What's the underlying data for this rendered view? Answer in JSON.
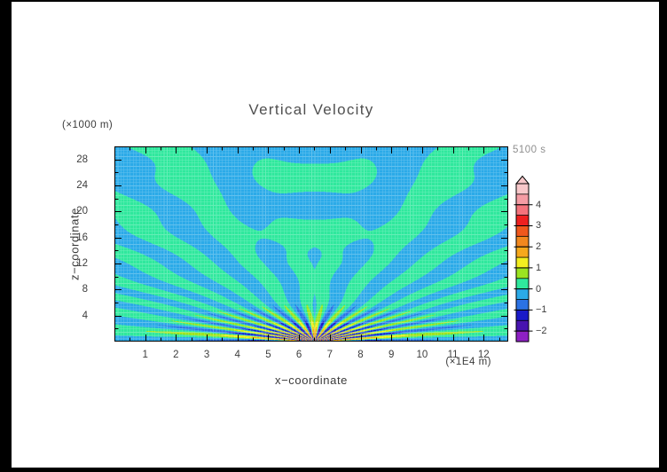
{
  "window": {
    "border_color": "#000000",
    "page_color": "#ffffff"
  },
  "header": {
    "title": "Vertical Velocity",
    "time_label": "5100 s"
  },
  "axes": {
    "x": {
      "label": "x−coordinate",
      "unit": "(×1E4 m)",
      "min": 0,
      "max": 12.8,
      "major_ticks": [
        1,
        2,
        3,
        4,
        5,
        6,
        7,
        8,
        9,
        10,
        11,
        12
      ],
      "minor_step": 0.5
    },
    "z": {
      "label": "z−coordinate",
      "unit": "(×1000 m)",
      "min": 0,
      "max": 30,
      "major_ticks": [
        4,
        8,
        12,
        16,
        20,
        24,
        28
      ],
      "minor_step": 2
    }
  },
  "colorbar": {
    "min": -2.5,
    "max": 5.0,
    "step": 0.5,
    "arrow_cap": "top",
    "tick_values": [
      4,
      3,
      2,
      1,
      0,
      -1,
      -2
    ],
    "tick_labels": [
      "4",
      "3",
      "2",
      "1",
      "0",
      "−1",
      "−2"
    ],
    "colors_low_to_high": [
      "#8E20C4",
      "#4814B0",
      "#1A1AC8",
      "#2B72E4",
      "#2BAAE8",
      "#2FE89D",
      "#9BE421",
      "#F2EE20",
      "#F6A81C",
      "#F2881E",
      "#F0581C",
      "#EE2020",
      "#F4737C",
      "#F59CA4",
      "#F8C8CA"
    ]
  },
  "chart_data": {
    "type": "heatmap",
    "title": "Vertical Velocity",
    "xlabel": "x−coordinate (×1E4 m)",
    "ylabel": "z−coordinate (×1000 m)",
    "x_range": [
      0,
      12.8
    ],
    "z_range": [
      0,
      30
    ],
    "time_s": 5100,
    "value_levels": {
      "min": -2.5,
      "max": 5.0,
      "step": 0.5
    },
    "description": "Internal-gravity-wave fan of alternating w-bands (mostly -0.5..0.5) radiating from a surface source at x=6.5e4 m; stronger amplitudes near the source, horizontal banding in the upper central column, fine mesh texture over the fill.",
    "model": {
      "source_x": 6.5,
      "phase_coeff": 48,
      "phase_offset": 0,
      "wobble_amp": 0.5,
      "wobble_kz": 0.85,
      "wobble_kx": 0.55,
      "base_amp": 0.47,
      "bump_amp": 2.0,
      "bump_sigma": 2.8,
      "column_sigma": 2.1,
      "column_zstart": 12,
      "column_zfade": 4,
      "column_period": 8.6,
      "column_phase": 2.8,
      "column_amp": 0.45,
      "mesh_nx": 128,
      "mesh_nz": 60,
      "mesh_lighten": 0.26
    }
  }
}
